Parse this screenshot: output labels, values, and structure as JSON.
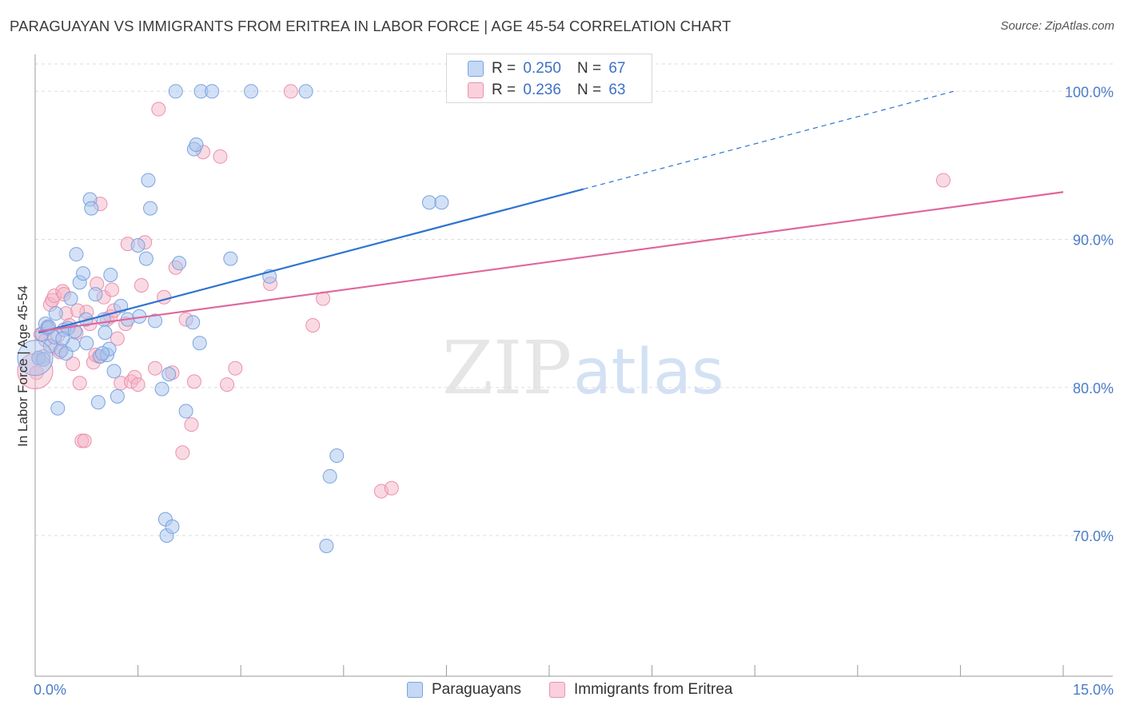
{
  "title": "PARAGUAYAN VS IMMIGRANTS FROM ERITREA IN LABOR FORCE | AGE 45-54 CORRELATION CHART",
  "source": "Source: ZipAtlas.com",
  "watermark": {
    "zip": "ZIP",
    "atlas": "atlas"
  },
  "legend_top": {
    "rows": [
      {
        "r_label": "R =",
        "r_value": "0.250",
        "n_label": "N =",
        "n_value": "67",
        "color": "#a8c4ee"
      },
      {
        "r_label": "R =",
        "r_value": "0.236",
        "n_label": "N =",
        "n_value": "63",
        "color": "#f4b6c8"
      }
    ]
  },
  "legend_bottom": [
    {
      "label": "Paraguayans",
      "color": "#a8c4ee"
    },
    {
      "label": "Immigrants from Eritrea",
      "color": "#f4b6c8"
    }
  ],
  "colors": {
    "blue_fill": "#a8c4ee",
    "blue_stroke": "#7aa3e0",
    "blue_line": "#2f74d0",
    "pink_fill": "#f4b6c8",
    "pink_stroke": "#ec90ae",
    "pink_line": "#e0669a",
    "grid": "#dddddd",
    "axis_text": "#4a7cc9"
  },
  "chart_data": {
    "type": "scatter",
    "title": "PARAGUAYAN VS IMMIGRANTS FROM ERITREA IN LABOR FORCE | AGE 45-54 CORRELATION CHART",
    "xlabel": "",
    "ylabel": "In Labor Force | Age 45-54",
    "xlim": [
      0,
      15
    ],
    "ylim": [
      60.5,
      102.5
    ],
    "x_tick_labels": [
      "0.0%",
      "15.0%"
    ],
    "y_ticks": [
      70,
      80,
      90,
      100
    ],
    "y_tick_labels": [
      "70.0%",
      "80.0%",
      "90.0%",
      "100.0%"
    ],
    "series": [
      {
        "name": "Paraguayans",
        "R": 0.25,
        "N": 67,
        "trend": {
          "x0": 0.05,
          "y0": 83.7,
          "x1": 8.0,
          "y1": 93.4,
          "dash_to_x": 13.4,
          "dash_to_y": 100.0
        },
        "points": [
          [
            0.05,
            82.0
          ],
          [
            0.1,
            83.6
          ],
          [
            0.15,
            84.3
          ],
          [
            0.18,
            84.0
          ],
          [
            0.22,
            82.8
          ],
          [
            0.28,
            83.4
          ],
          [
            0.3,
            85.0
          ],
          [
            0.33,
            78.6
          ],
          [
            0.38,
            82.5
          ],
          [
            0.42,
            83.9
          ],
          [
            0.45,
            82.3
          ],
          [
            0.48,
            84.0
          ],
          [
            0.52,
            86.0
          ],
          [
            0.55,
            82.9
          ],
          [
            0.6,
            89.0
          ],
          [
            0.65,
            87.1
          ],
          [
            0.7,
            87.7
          ],
          [
            0.75,
            83.0
          ],
          [
            0.8,
            92.7
          ],
          [
            0.82,
            92.1
          ],
          [
            0.88,
            86.3
          ],
          [
            0.92,
            79.0
          ],
          [
            0.95,
            82.1
          ],
          [
            1.0,
            84.6
          ],
          [
            1.02,
            83.7
          ],
          [
            1.05,
            82.2
          ],
          [
            1.08,
            82.6
          ],
          [
            1.1,
            87.6
          ],
          [
            1.15,
            81.1
          ],
          [
            1.2,
            79.4
          ],
          [
            1.25,
            85.5
          ],
          [
            1.35,
            84.6
          ],
          [
            1.5,
            89.6
          ],
          [
            1.52,
            84.8
          ],
          [
            1.62,
            88.7
          ],
          [
            1.65,
            94.0
          ],
          [
            1.68,
            92.1
          ],
          [
            1.75,
            84.5
          ],
          [
            1.85,
            79.9
          ],
          [
            1.9,
            71.1
          ],
          [
            1.92,
            70.0
          ],
          [
            1.95,
            80.9
          ],
          [
            2.0,
            70.6
          ],
          [
            2.05,
            100.0
          ],
          [
            2.1,
            88.4
          ],
          [
            2.2,
            78.4
          ],
          [
            2.3,
            84.4
          ],
          [
            2.32,
            96.1
          ],
          [
            2.35,
            96.4
          ],
          [
            2.4,
            83.0
          ],
          [
            2.42,
            100.0
          ],
          [
            2.58,
            100.0
          ],
          [
            2.85,
            88.7
          ],
          [
            3.15,
            100.0
          ],
          [
            3.42,
            87.5
          ],
          [
            3.95,
            100.0
          ],
          [
            4.25,
            69.3
          ],
          [
            4.3,
            74.0
          ],
          [
            4.4,
            75.4
          ],
          [
            5.75,
            92.5
          ],
          [
            5.93,
            92.5
          ],
          [
            0.2,
            84.1
          ],
          [
            0.4,
            83.3
          ],
          [
            0.12,
            81.9
          ],
          [
            0.58,
            83.8
          ],
          [
            0.74,
            84.6
          ],
          [
            0.98,
            82.3
          ]
        ]
      },
      {
        "name": "Immigrants from Eritrea",
        "R": 0.236,
        "N": 63,
        "trend": {
          "x0": 0.05,
          "y0": 83.8,
          "x1": 15.0,
          "y1": 93.2
        },
        "points": [
          [
            0.02,
            81.0
          ],
          [
            0.05,
            82.0
          ],
          [
            0.08,
            83.6
          ],
          [
            0.12,
            82.1
          ],
          [
            0.15,
            83.2
          ],
          [
            0.18,
            84.1
          ],
          [
            0.22,
            85.6
          ],
          [
            0.25,
            85.9
          ],
          [
            0.28,
            86.2
          ],
          [
            0.3,
            82.7
          ],
          [
            0.33,
            83.5
          ],
          [
            0.36,
            82.4
          ],
          [
            0.4,
            86.5
          ],
          [
            0.45,
            85.0
          ],
          [
            0.5,
            84.2
          ],
          [
            0.55,
            81.6
          ],
          [
            0.6,
            83.7
          ],
          [
            0.65,
            80.3
          ],
          [
            0.68,
            76.4
          ],
          [
            0.72,
            76.4
          ],
          [
            0.75,
            85.1
          ],
          [
            0.8,
            84.3
          ],
          [
            0.85,
            81.7
          ],
          [
            0.9,
            87.0
          ],
          [
            0.93,
            82.1
          ],
          [
            0.95,
            92.4
          ],
          [
            1.0,
            86.1
          ],
          [
            1.05,
            84.6
          ],
          [
            1.1,
            84.8
          ],
          [
            1.15,
            85.2
          ],
          [
            1.2,
            83.3
          ],
          [
            1.25,
            80.3
          ],
          [
            1.35,
            89.7
          ],
          [
            1.4,
            80.4
          ],
          [
            1.45,
            80.7
          ],
          [
            1.5,
            80.2
          ],
          [
            1.55,
            86.9
          ],
          [
            1.6,
            89.8
          ],
          [
            1.75,
            81.3
          ],
          [
            1.8,
            98.8
          ],
          [
            1.88,
            86.1
          ],
          [
            2.0,
            81.0
          ],
          [
            2.05,
            88.1
          ],
          [
            2.15,
            75.6
          ],
          [
            2.2,
            84.6
          ],
          [
            2.28,
            77.5
          ],
          [
            2.32,
            80.4
          ],
          [
            2.45,
            95.9
          ],
          [
            2.7,
            95.6
          ],
          [
            2.8,
            80.2
          ],
          [
            2.92,
            81.3
          ],
          [
            3.43,
            87.0
          ],
          [
            3.73,
            100.0
          ],
          [
            4.05,
            84.2
          ],
          [
            4.2,
            86.0
          ],
          [
            5.05,
            73.0
          ],
          [
            5.2,
            73.2
          ],
          [
            13.25,
            94.0
          ],
          [
            0.42,
            86.3
          ],
          [
            0.62,
            85.2
          ],
          [
            0.88,
            82.2
          ],
          [
            1.12,
            86.6
          ],
          [
            1.32,
            84.3
          ]
        ]
      }
    ]
  }
}
